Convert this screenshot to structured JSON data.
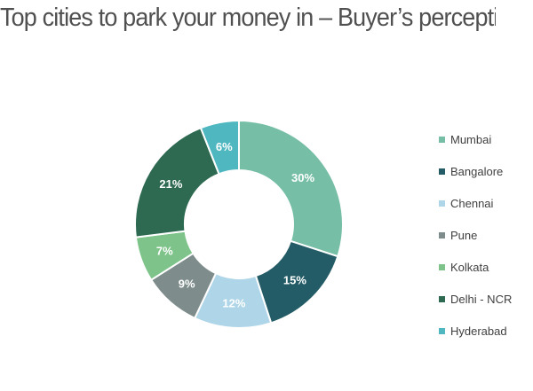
{
  "chart_data": {
    "type": "pie",
    "variant": "donut",
    "title": "Top cities to park your money in – Buyer’s perception",
    "categories": [
      "Mumbai",
      "Bangalore",
      "Chennai",
      "Pune",
      "Kolkata",
      "Delhi - NCR",
      "Hyderabad"
    ],
    "values": [
      30,
      15,
      12,
      9,
      7,
      21,
      6
    ],
    "data_labels": [
      "30%",
      "15%",
      "12%",
      "9%",
      "7%",
      "21%",
      "6%"
    ],
    "colors": [
      "#76bea6",
      "#235c66",
      "#aed6e8",
      "#7e8c8c",
      "#7ec48a",
      "#2e6a52",
      "#4fb7c0"
    ],
    "unit": "%",
    "legend_position": "right"
  }
}
